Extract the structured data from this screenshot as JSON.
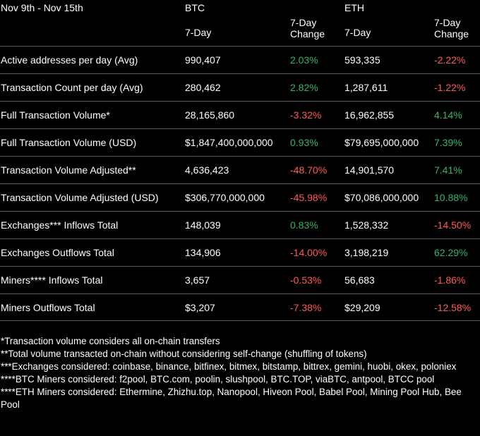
{
  "header": {
    "date_range": "Nov 9th - Nov 15th",
    "btc": "BTC",
    "eth": "ETH",
    "btc_value_col": "7-Day",
    "btc_change_col": "7-Day Change",
    "eth_value_col": "7-Day",
    "eth_change_col": "7-Day Change"
  },
  "colors": {
    "positive": "#33b56c",
    "negative": "#ff5a5a",
    "background": "#000000"
  },
  "rows": [
    {
      "label": "Active addresses per day (Avg)",
      "btc": "990,407",
      "btc_change": "2.03%",
      "btc_dir": "pos",
      "eth": "593,335",
      "eth_change": "-2.22%",
      "eth_dir": "neg"
    },
    {
      "label": "Transaction Count per day (Avg)",
      "btc": "280,462",
      "btc_change": "2.82%",
      "btc_dir": "pos",
      "eth": "1,287,611",
      "eth_change": "-1.22%",
      "eth_dir": "neg"
    },
    {
      "label": "Full Transaction Volume*",
      "btc": "28,165,860",
      "btc_change": "-3.32%",
      "btc_dir": "neg",
      "eth": "16,962,855",
      "eth_change": "4.14%",
      "eth_dir": "pos"
    },
    {
      "label": "Full Transaction Volume (USD)",
      "btc": "$1,847,400,000,000",
      "btc_change": "0.93%",
      "btc_dir": "pos",
      "eth": "$79,695,000,000",
      "eth_change": "7.39%",
      "eth_dir": "pos"
    },
    {
      "label": "Transaction Volume Adjusted**",
      "btc": "4,636,423",
      "btc_change": "-48.70%",
      "btc_dir": "neg",
      "eth": "14,901,570",
      "eth_change": "7.41%",
      "eth_dir": "pos"
    },
    {
      "label": "Transaction Volume Adjusted (USD)",
      "btc": "$306,770,000,000",
      "btc_change": "-45.98%",
      "btc_dir": "neg",
      "eth": "$70,086,000,000",
      "eth_change": "10.88%",
      "eth_dir": "pos"
    },
    {
      "label": "Exchanges*** Inflows Total",
      "btc": "148,039",
      "btc_change": "0.83%",
      "btc_dir": "pos",
      "eth": "1,528,332",
      "eth_change": "-14.50%",
      "eth_dir": "neg"
    },
    {
      "label": "Exchanges Outflows Total",
      "btc": "134,906",
      "btc_change": "-14.00%",
      "btc_dir": "neg",
      "eth": "3,198,219",
      "eth_change": "62.29%",
      "eth_dir": "pos"
    },
    {
      "label": "Miners**** Inflows Total",
      "btc": "3,657",
      "btc_change": "-0.53%",
      "btc_dir": "neg",
      "eth": "56,683",
      "eth_change": "-1.86%",
      "eth_dir": "neg"
    },
    {
      "label": "Miners Outflows Total",
      "btc": "$3,207",
      "btc_change": "-7.38%",
      "btc_dir": "neg",
      "eth": "$29,209",
      "eth_change": "-12.58%",
      "eth_dir": "neg"
    }
  ],
  "notes": [
    "*Transaction volume considers all on-chain transfers",
    "**Total volume transacted on-chain without considering self-change (shuffling of tokens)",
    "***Exchanges considered: coinbase, binance, bitfinex, bitmex, bitstamp, bittrex, gemini, huobi, okex, poloniex",
    "****BTC Miners considered: f2pool, BTC.com, poolin, slushpool, BTC.TOP, viaBTC, antpool, BTCC pool",
    "****ETH Miners considered: Ethermine, Zhizhu.top, Nanopool, Hiveon Pool, Babel Pool, Mining Pool Hub, Bee Pool"
  ]
}
